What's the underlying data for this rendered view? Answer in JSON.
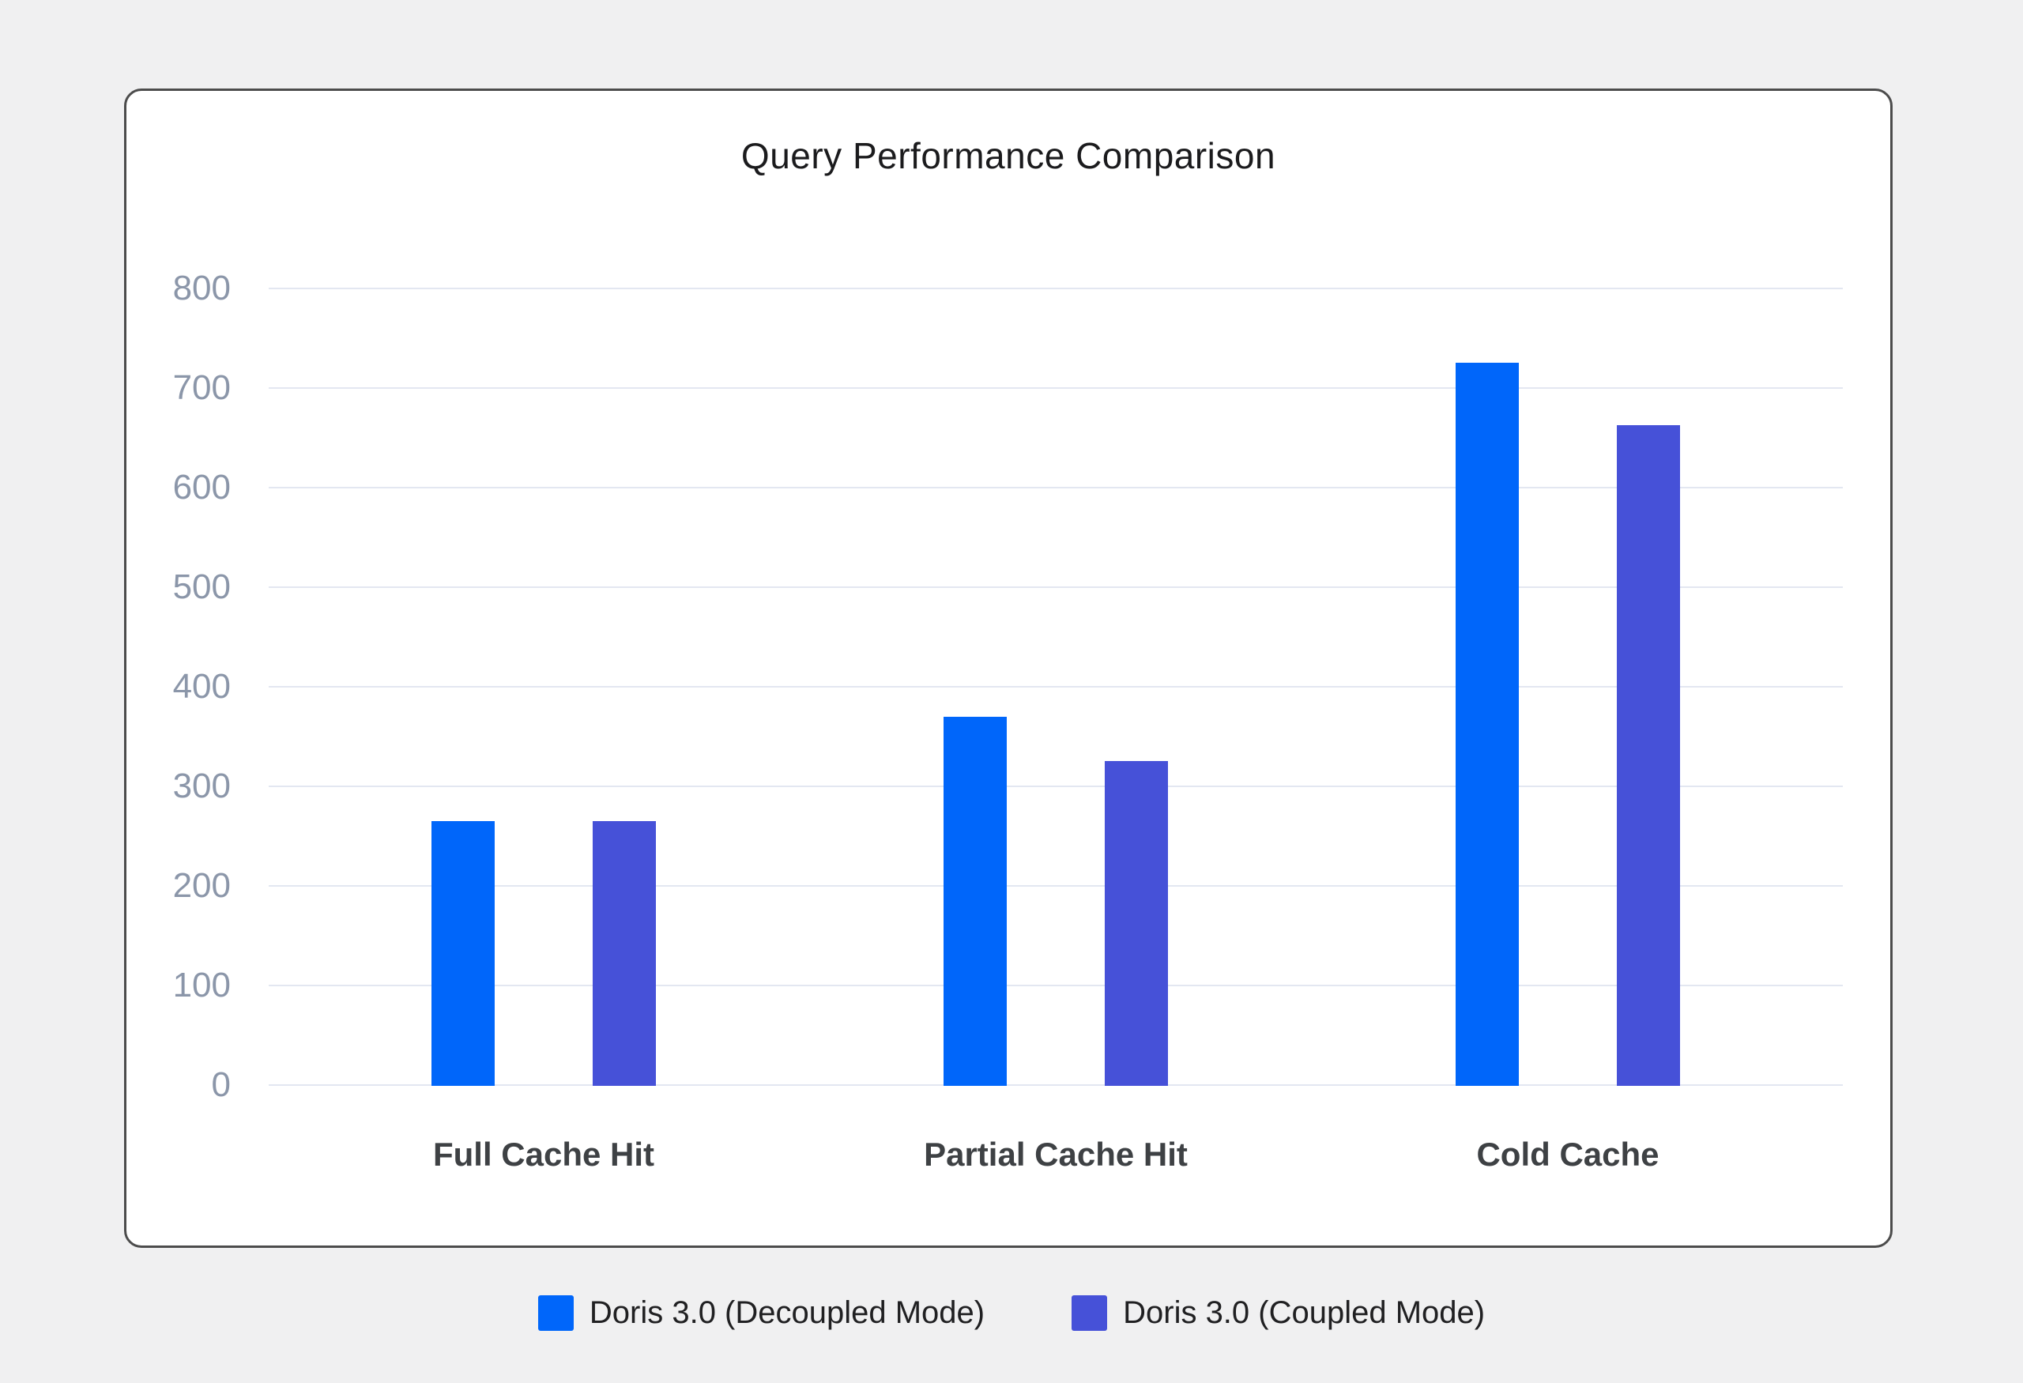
{
  "chart_data": {
    "type": "bar",
    "title": "Query Performance Comparison",
    "categories": [
      "Full Cache Hit",
      "Partial Cache Hit",
      "Cold Cache"
    ],
    "series": [
      {
        "name": "Doris 3.0 (Decoupled Mode)",
        "color": "#0066fa",
        "values": [
          265,
          370,
          725
        ]
      },
      {
        "name": "Doris 3.0 (Coupled Mode)",
        "color": "#4651d8",
        "values": [
          265,
          325,
          663
        ]
      }
    ],
    "xlabel": "",
    "ylabel": "",
    "ylim": [
      0,
      800
    ],
    "ytick_step": 100,
    "grid": true,
    "legend_position": "bottom"
  }
}
